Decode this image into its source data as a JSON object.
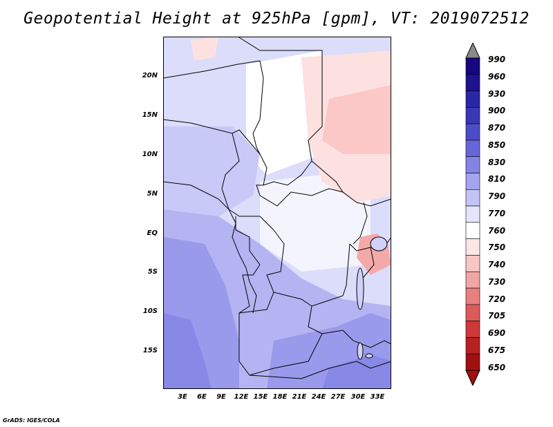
{
  "title": "Geopotential Height at 925hPa [gpm], VT: 2019072512",
  "credit": "GrADS: IGES/COLA",
  "map": {
    "lat_labels": [
      "20N",
      "15N",
      "10N",
      "5N",
      "EQ",
      "5S",
      "10S",
      "15S"
    ],
    "lon_labels": [
      "3E",
      "6E",
      "9E",
      "12E",
      "15E",
      "18E",
      "21E",
      "24E",
      "27E",
      "30E",
      "33E"
    ],
    "field_colors": {
      "pink_light": "#fde0e0",
      "pink_mid": "#fbc7c7",
      "pink_dark": "#f4a9a9",
      "blue_lightest": "#dcdcfb",
      "blue_light": "#c9c9f8",
      "blue_mid": "#b4b4f3",
      "blue_dark": "#9a9aec",
      "blue_darker": "#8888e6"
    }
  },
  "colorbar": {
    "labels": [
      "990",
      "960",
      "930",
      "900",
      "870",
      "850",
      "830",
      "810",
      "790",
      "770",
      "760",
      "750",
      "740",
      "730",
      "720",
      "705",
      "690",
      "675",
      "650"
    ],
    "colors": [
      "#17067f",
      "#1e128f",
      "#2b26a3",
      "#3a36b6",
      "#4d4cc8",
      "#6766d8",
      "#8584e4",
      "#a4a4ee",
      "#c3c3f6",
      "#e4e4fc",
      "#ffffff",
      "#fde6e6",
      "#f8c6c6",
      "#f1a6a6",
      "#e88080",
      "#dd5a5a",
      "#cd3838",
      "#b82121",
      "#a11010"
    ],
    "top_arrow_color": "#8a8a8a",
    "bottom_arrow_color": "#a11010"
  }
}
